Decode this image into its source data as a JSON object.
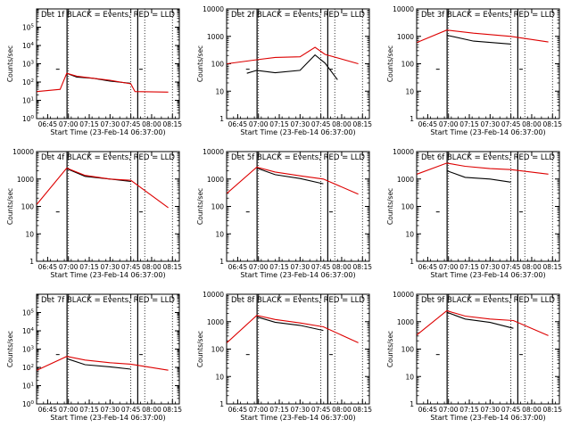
{
  "chart_data": [
    {
      "type": "line",
      "panel": 1,
      "title": "Det 1f BLACK = Events, RED = LLD",
      "xlabel": "Start Time (23-Feb-14 06:37:00)",
      "ylabel": "Counts/sec",
      "yscale": "log",
      "ylim": [
        1,
        1000000
      ],
      "yticks": [
        {
          "v": 1,
          "m": "10",
          "e": "0"
        },
        {
          "v": 10,
          "m": "10",
          "e": "1"
        },
        {
          "v": 100,
          "m": "10",
          "e": "2"
        },
        {
          "v": 1000,
          "m": "10",
          "e": "3"
        },
        {
          "v": 10000,
          "m": "10",
          "e": "4"
        },
        {
          "v": 100000,
          "m": "10",
          "e": "5"
        }
      ],
      "series": [
        {
          "name": "Events",
          "color": "#000000",
          "values": [
            {
              "t": 6.98,
              "v": 300
            },
            {
              "t": 7.1,
              "v": 200
            },
            {
              "t": 7.3,
              "v": 150
            },
            {
              "t": 7.5,
              "v": 120
            },
            {
              "t": 7.75,
              "v": 80
            }
          ]
        },
        {
          "name": "LLD",
          "color": "#dd0000",
          "values": [
            {
              "t": 6.62,
              "v": 30
            },
            {
              "t": 6.9,
              "v": 40
            },
            {
              "t": 6.98,
              "v": 300
            },
            {
              "t": 7.1,
              "v": 210
            },
            {
              "t": 7.3,
              "v": 160
            },
            {
              "t": 7.5,
              "v": 125
            },
            {
              "t": 7.75,
              "v": 80
            },
            {
              "t": 7.8,
              "v": 30
            },
            {
              "t": 8.2,
              "v": 28
            }
          ]
        }
      ]
    },
    {
      "type": "line",
      "panel": 2,
      "title": "Det 2f BLACK = Events, RED = LLD",
      "xlabel": "Start Time (23-Feb-14 06:37:00)",
      "ylabel": "Counts/sec",
      "yscale": "log",
      "ylim": [
        1,
        10000
      ],
      "yticks": [
        {
          "v": 1,
          "m": "1"
        },
        {
          "v": 10,
          "m": "10"
        },
        {
          "v": 100,
          "m": "100"
        },
        {
          "v": 1000,
          "m": "1000"
        },
        {
          "v": 10000,
          "m": "10000"
        }
      ],
      "series": [
        {
          "name": "Events",
          "color": "#000000",
          "values": [
            {
              "t": 6.86,
              "v": 45
            },
            {
              "t": 6.98,
              "v": 60
            },
            {
              "t": 7.2,
              "v": 45
            },
            {
              "t": 7.5,
              "v": 60
            },
            {
              "t": 7.68,
              "v": 200
            },
            {
              "t": 7.8,
              "v": 110
            },
            {
              "t": 7.95,
              "v": 25
            }
          ]
        },
        {
          "name": "LLD",
          "color": "#dd0000",
          "values": [
            {
              "t": 6.62,
              "v": 100
            },
            {
              "t": 6.98,
              "v": 140
            },
            {
              "t": 7.2,
              "v": 170
            },
            {
              "t": 7.5,
              "v": 180
            },
            {
              "t": 7.68,
              "v": 400
            },
            {
              "t": 7.8,
              "v": 220
            },
            {
              "t": 8.2,
              "v": 100
            }
          ]
        }
      ]
    },
    {
      "type": "line",
      "panel": 3,
      "title": "Det 3f BLACK = Events, RED = LLD",
      "xlabel": "Start Time (23-Feb-14 06:37:00)",
      "ylabel": "Counts/sec",
      "yscale": "log",
      "ylim": [
        1,
        10000
      ],
      "yticks": [
        {
          "v": 1,
          "m": "1"
        },
        {
          "v": 10,
          "m": "10"
        },
        {
          "v": 100,
          "m": "100"
        },
        {
          "v": 1000,
          "m": "1000"
        },
        {
          "v": 10000,
          "m": "10000"
        }
      ],
      "series": [
        {
          "name": "Events",
          "color": "#000000",
          "values": [
            {
              "t": 6.98,
              "v": 1100
            },
            {
              "t": 7.3,
              "v": 700
            },
            {
              "t": 7.75,
              "v": 500
            }
          ]
        },
        {
          "name": "LLD",
          "color": "#dd0000",
          "values": [
            {
              "t": 6.62,
              "v": 600
            },
            {
              "t": 6.98,
              "v": 1700
            },
            {
              "t": 7.3,
              "v": 1300
            },
            {
              "t": 7.75,
              "v": 1000
            },
            {
              "t": 8.2,
              "v": 620
            }
          ]
        }
      ]
    },
    {
      "type": "line",
      "panel": 4,
      "title": "Det 4f BLACK = Events, RED = LLD",
      "xlabel": "Start Time (23-Feb-14 06:37:00)",
      "ylabel": "Counts/sec",
      "yscale": "log",
      "ylim": [
        1,
        10000
      ],
      "yticks": [
        {
          "v": 1,
          "m": "1"
        },
        {
          "v": 10,
          "m": "10"
        },
        {
          "v": 100,
          "m": "100"
        },
        {
          "v": 1000,
          "m": "1000"
        },
        {
          "v": 10000,
          "m": "10000"
        }
      ],
      "series": [
        {
          "name": "Events",
          "color": "#000000",
          "values": [
            {
              "t": 6.98,
              "v": 2400
            },
            {
              "t": 7.2,
              "v": 1300
            },
            {
              "t": 7.5,
              "v": 950
            },
            {
              "t": 7.75,
              "v": 850
            }
          ]
        },
        {
          "name": "LLD",
          "color": "#dd0000",
          "values": [
            {
              "t": 6.62,
              "v": 120
            },
            {
              "t": 6.98,
              "v": 2500
            },
            {
              "t": 7.2,
              "v": 1350
            },
            {
              "t": 7.5,
              "v": 1000
            },
            {
              "t": 7.75,
              "v": 900
            },
            {
              "t": 8.2,
              "v": 90
            }
          ]
        }
      ]
    },
    {
      "type": "line",
      "panel": 5,
      "title": "Det 5f BLACK = Events, RED = LLD",
      "xlabel": "Start Time (23-Feb-14 06:37:00)",
      "ylabel": "Counts/sec",
      "yscale": "log",
      "ylim": [
        1,
        10000
      ],
      "yticks": [
        {
          "v": 1,
          "m": "1"
        },
        {
          "v": 10,
          "m": "10"
        },
        {
          "v": 100,
          "m": "100"
        },
        {
          "v": 1000,
          "m": "1000"
        },
        {
          "v": 10000,
          "m": "10000"
        }
      ],
      "series": [
        {
          "name": "Events",
          "color": "#000000",
          "values": [
            {
              "t": 6.98,
              "v": 2500
            },
            {
              "t": 7.2,
              "v": 1500
            },
            {
              "t": 7.5,
              "v": 1000
            },
            {
              "t": 7.78,
              "v": 700
            }
          ]
        },
        {
          "name": "LLD",
          "color": "#dd0000",
          "values": [
            {
              "t": 6.62,
              "v": 300
            },
            {
              "t": 6.98,
              "v": 2700
            },
            {
              "t": 7.2,
              "v": 1800
            },
            {
              "t": 7.5,
              "v": 1300
            },
            {
              "t": 7.78,
              "v": 1000
            },
            {
              "t": 8.2,
              "v": 280
            }
          ]
        }
      ]
    },
    {
      "type": "line",
      "panel": 6,
      "title": "Det 6f BLACK = Events, RED = LLD",
      "xlabel": "Start Time (23-Feb-14 06:37:00)",
      "ylabel": "Counts/sec",
      "yscale": "log",
      "ylim": [
        1,
        10000
      ],
      "yticks": [
        {
          "v": 1,
          "m": "1"
        },
        {
          "v": 10,
          "m": "10"
        },
        {
          "v": 100,
          "m": "100"
        },
        {
          "v": 1000,
          "m": "1000"
        },
        {
          "v": 10000,
          "m": "10000"
        }
      ],
      "series": [
        {
          "name": "Events",
          "color": "#000000",
          "values": [
            {
              "t": 6.98,
              "v": 2000
            },
            {
              "t": 7.2,
              "v": 1200
            },
            {
              "t": 7.5,
              "v": 950
            },
            {
              "t": 7.75,
              "v": 800
            }
          ]
        },
        {
          "name": "LLD",
          "color": "#dd0000",
          "values": [
            {
              "t": 6.62,
              "v": 1500
            },
            {
              "t": 6.98,
              "v": 3800
            },
            {
              "t": 7.2,
              "v": 2900
            },
            {
              "t": 7.5,
              "v": 2400
            },
            {
              "t": 7.75,
              "v": 2200
            },
            {
              "t": 8.2,
              "v": 1500
            }
          ]
        }
      ]
    },
    {
      "type": "line",
      "panel": 7,
      "title": "Det 7f BLACK = Events, RED = LLD",
      "xlabel": "Start Time (23-Feb-14 06:37:00)",
      "ylabel": "Counts/sec",
      "yscale": "log",
      "ylim": [
        1,
        1000000
      ],
      "yticks": [
        {
          "v": 1,
          "m": "10",
          "e": "0"
        },
        {
          "v": 10,
          "m": "10",
          "e": "1"
        },
        {
          "v": 100,
          "m": "10",
          "e": "2"
        },
        {
          "v": 1000,
          "m": "10",
          "e": "3"
        },
        {
          "v": 10000,
          "m": "10",
          "e": "4"
        },
        {
          "v": 100000,
          "m": "10",
          "e": "5"
        }
      ],
      "series": [
        {
          "name": "Events",
          "color": "#000000",
          "values": [
            {
              "t": 6.98,
              "v": 300
            },
            {
              "t": 7.2,
              "v": 150
            },
            {
              "t": 7.5,
              "v": 100
            },
            {
              "t": 7.75,
              "v": 85
            }
          ]
        },
        {
          "name": "LLD",
          "color": "#dd0000",
          "values": [
            {
              "t": 6.62,
              "v": 70
            },
            {
              "t": 6.98,
              "v": 400
            },
            {
              "t": 7.2,
              "v": 250
            },
            {
              "t": 7.5,
              "v": 180
            },
            {
              "t": 7.75,
              "v": 150
            },
            {
              "t": 8.2,
              "v": 70
            }
          ]
        }
      ]
    },
    {
      "type": "line",
      "panel": 8,
      "title": "Det 8f BLACK = Events, RED = LLD",
      "xlabel": "Start Time (23-Feb-14 06:37:00)",
      "ylabel": "Counts/sec",
      "yscale": "log",
      "ylim": [
        1,
        10000
      ],
      "yticks": [
        {
          "v": 1,
          "m": "1"
        },
        {
          "v": 10,
          "m": "10"
        },
        {
          "v": 100,
          "m": "100"
        },
        {
          "v": 1000,
          "m": "1000"
        },
        {
          "v": 10000,
          "m": "10000"
        }
      ],
      "series": [
        {
          "name": "Events",
          "color": "#000000",
          "values": [
            {
              "t": 6.98,
              "v": 1500
            },
            {
              "t": 7.2,
              "v": 1000
            },
            {
              "t": 7.5,
              "v": 700
            },
            {
              "t": 7.78,
              "v": 500
            }
          ]
        },
        {
          "name": "LLD",
          "color": "#dd0000",
          "values": [
            {
              "t": 6.62,
              "v": 170
            },
            {
              "t": 6.98,
              "v": 1700
            },
            {
              "t": 7.2,
              "v": 1200
            },
            {
              "t": 7.5,
              "v": 900
            },
            {
              "t": 7.78,
              "v": 650
            },
            {
              "t": 8.2,
              "v": 170
            }
          ]
        }
      ]
    },
    {
      "type": "line",
      "panel": 9,
      "title": "Det 9f BLACK = Events, RED = LLD",
      "xlabel": "Start Time (23-Feb-14 06:37:00)",
      "ylabel": "Counts/sec",
      "yscale": "log",
      "ylim": [
        1,
        10000
      ],
      "yticks": [
        {
          "v": 1,
          "m": "1"
        },
        {
          "v": 10,
          "m": "10"
        },
        {
          "v": 100,
          "m": "100"
        },
        {
          "v": 1000,
          "m": "1000"
        },
        {
          "v": 10000,
          "m": "10000"
        }
      ],
      "series": [
        {
          "name": "Events",
          "color": "#000000",
          "values": [
            {
              "t": 6.98,
              "v": 2200
            },
            {
              "t": 7.2,
              "v": 1300
            },
            {
              "t": 7.5,
              "v": 900
            },
            {
              "t": 7.78,
              "v": 600
            }
          ]
        },
        {
          "name": "LLD",
          "color": "#dd0000",
          "values": [
            {
              "t": 6.62,
              "v": 330
            },
            {
              "t": 6.98,
              "v": 2500
            },
            {
              "t": 7.2,
              "v": 1600
            },
            {
              "t": 7.5,
              "v": 1250
            },
            {
              "t": 7.78,
              "v": 1100
            },
            {
              "t": 8.2,
              "v": 310
            }
          ]
        }
      ]
    }
  ],
  "x_axis": {
    "tick_labels": [
      "06:45",
      "07:00",
      "07:15",
      "07:30",
      "07:45",
      "08:00",
      "08:15"
    ],
    "tick_hours": [
      6.75,
      7.0,
      7.25,
      7.5,
      7.75,
      8.0,
      8.25
    ],
    "range_hours": [
      6.617,
      8.333
    ],
    "solid_marker_hours": [
      6.983,
      7.833
    ],
    "dotted_marker_hours": [
      7.0,
      7.75,
      7.917,
      8.25
    ],
    "small_tick_hours": [
      6.85,
      7.85
    ]
  }
}
